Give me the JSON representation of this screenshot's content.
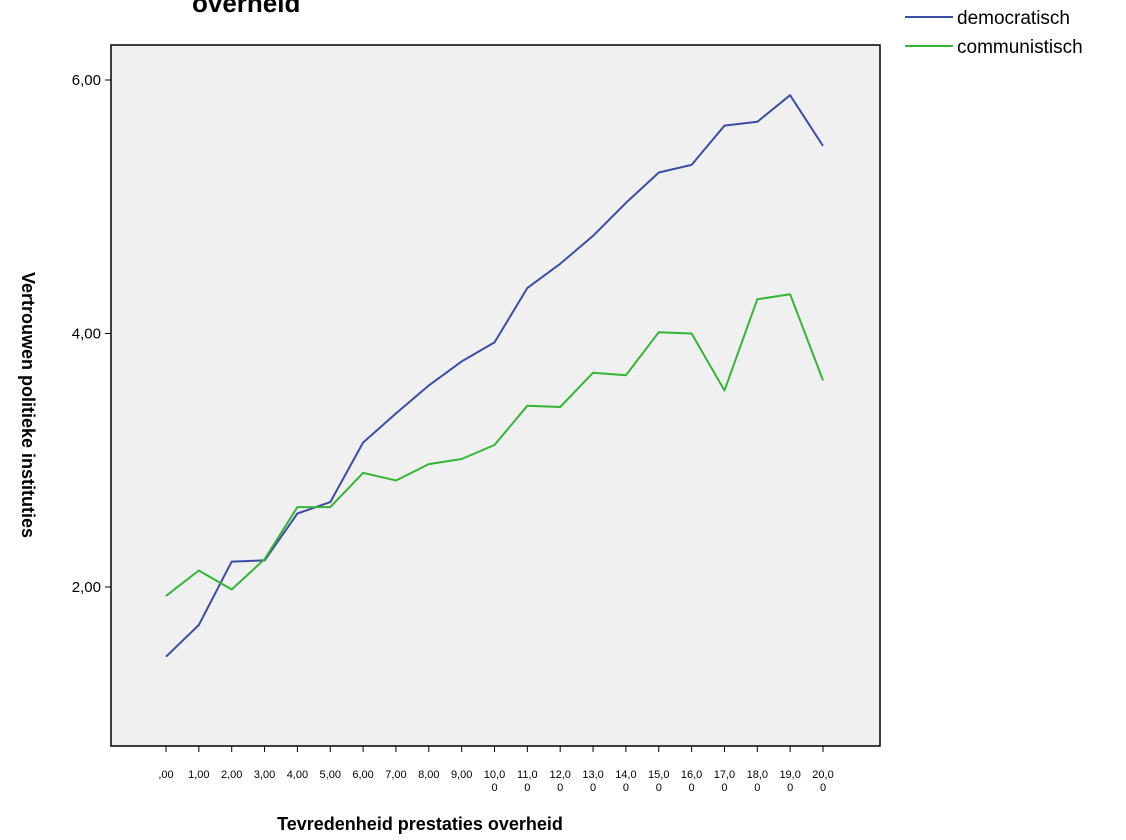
{
  "chart_data": {
    "type": "line",
    "title": "overheid",
    "xlabel": "Tevredenheid  prestaties overheid",
    "ylabel": "Vertrouwen politieke instituties",
    "x_tick_labels": [
      ",00",
      "1,00",
      "2,00",
      "3,00",
      "4,00",
      "5,00",
      "6,00",
      "7,00",
      "8,00",
      "9,00",
      "10,0\n0",
      "11,0\n0",
      "12,0\n0",
      "13,0\n0",
      "14,0\n0",
      "15,0\n0",
      "16,0\n0",
      "17,0\n0",
      "18,0\n0",
      "19,0\n0",
      "20,0\n0"
    ],
    "x": [
      0,
      1,
      2,
      3,
      4,
      5,
      6,
      7,
      8,
      9,
      10,
      11,
      12,
      13,
      14,
      15,
      16,
      17,
      18,
      19,
      20
    ],
    "y_ticks": [
      2,
      4,
      6
    ],
    "y_tick_labels": [
      "2,00",
      "4,00",
      "6,00"
    ],
    "ylim": [
      0.7,
      6.3
    ],
    "grid": false,
    "legend_position": "top-right",
    "series": [
      {
        "name": "democratisch",
        "color": "#3b4ea3",
        "values": [
          1.45,
          1.7,
          2.2,
          2.21,
          2.58,
          2.67,
          3.14,
          3.37,
          3.59,
          3.78,
          3.93,
          4.36,
          4.55,
          4.77,
          5.03,
          5.27,
          5.33,
          5.64,
          5.67,
          5.88,
          5.48
        ]
      },
      {
        "name": "communistisch",
        "color": "#35b536",
        "values": [
          1.93,
          2.13,
          1.98,
          2.22,
          2.63,
          2.63,
          2.9,
          2.84,
          2.97,
          3.01,
          3.12,
          3.43,
          3.42,
          3.69,
          3.67,
          4.01,
          4.0,
          3.55,
          4.27,
          4.31,
          3.63
        ]
      }
    ]
  }
}
